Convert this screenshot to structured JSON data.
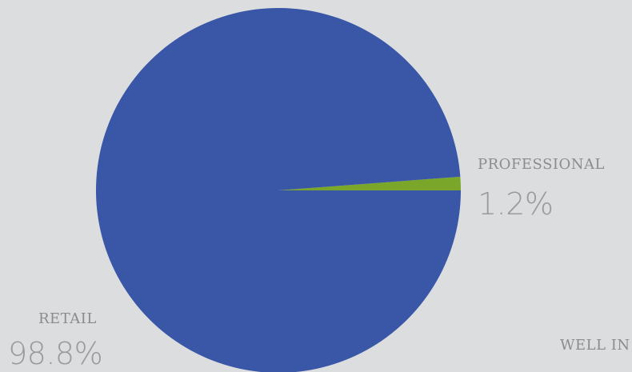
{
  "chart_data": {
    "type": "pie",
    "slices": [
      {
        "label": "RETAIL",
        "value": 98.8,
        "value_text": "98.8%",
        "color": "#3a57a7"
      },
      {
        "label": "PROFESSIONAL",
        "value": 1.2,
        "value_text": "1.2%",
        "color": "#7aa62a"
      }
    ],
    "partial_labels": [
      {
        "text": "WELL IN"
      }
    ]
  },
  "colors": {
    "background": "#dcdddf",
    "label_text": "#8c8c8c",
    "value_text": "#9a9a9a"
  }
}
